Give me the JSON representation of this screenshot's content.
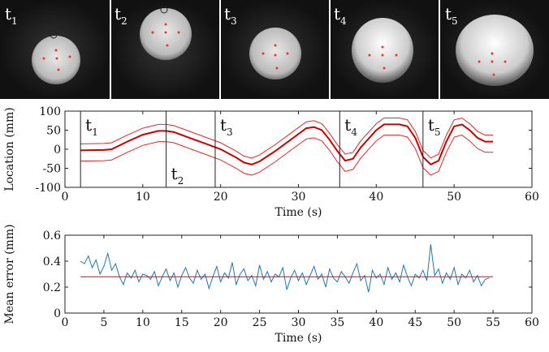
{
  "frames": {
    "labels": [
      {
        "text": "t",
        "sub": "1"
      },
      {
        "text": "t",
        "sub": "2"
      },
      {
        "text": "t",
        "sub": "3"
      },
      {
        "text": "t",
        "sub": "4"
      },
      {
        "text": "t",
        "sub": "5"
      }
    ]
  },
  "chart_data": [
    {
      "type": "line",
      "ylabel": "Location (mm)",
      "xlabel": "Time (s)",
      "xlim": [
        0,
        60
      ],
      "xticks": [
        0,
        10,
        20,
        30,
        40,
        50,
        60
      ],
      "ylim": [
        -100,
        100
      ],
      "yticks": [
        -100,
        -50,
        0,
        50,
        100
      ],
      "x": [
        2,
        5,
        6,
        8,
        10,
        12,
        13,
        14,
        16,
        18,
        20,
        22,
        23,
        24,
        25,
        27,
        29,
        31,
        32,
        33,
        34,
        35,
        36,
        37,
        38,
        40,
        41,
        43,
        44,
        45,
        46,
        47,
        48,
        49,
        50,
        51,
        52,
        53,
        54,
        55
      ],
      "series": [
        {
          "color": "#cc0000",
          "width": 2,
          "values": [
            -3,
            -2,
            0,
            20,
            38,
            48,
            48,
            45,
            30,
            15,
            0,
            -22,
            -35,
            -40,
            -32,
            -5,
            25,
            55,
            58,
            50,
            25,
            -5,
            -30,
            -25,
            5,
            50,
            65,
            65,
            60,
            30,
            -20,
            -40,
            -30,
            20,
            60,
            65,
            50,
            30,
            20,
            20
          ]
        },
        {
          "color": "#ee2222",
          "width": 1,
          "values": [
            14,
            15,
            17,
            37,
            55,
            65,
            65,
            62,
            47,
            32,
            17,
            -5,
            -18,
            -23,
            -15,
            12,
            42,
            72,
            75,
            67,
            42,
            12,
            -13,
            -8,
            22,
            67,
            82,
            82,
            77,
            47,
            -3,
            -23,
            -13,
            37,
            77,
            82,
            67,
            47,
            37,
            37
          ]
        },
        {
          "color": "#ee2222",
          "width": 1,
          "values": [
            -31,
            -30,
            -28,
            -8,
            10,
            20,
            20,
            17,
            2,
            -13,
            -28,
            -50,
            -63,
            -68,
            -60,
            -33,
            -3,
            27,
            30,
            22,
            -3,
            -33,
            -58,
            -53,
            -23,
            22,
            37,
            37,
            32,
            2,
            -48,
            -68,
            -58,
            -8,
            32,
            37,
            22,
            2,
            -8,
            -8
          ]
        }
      ],
      "annotations": [
        {
          "text": "t",
          "sub": "1",
          "x": 2,
          "position": "top"
        },
        {
          "text": "t",
          "sub": "2",
          "x": 13,
          "position": "bottom"
        },
        {
          "text": "t",
          "sub": "3",
          "x": 19.3,
          "position": "top"
        },
        {
          "text": "t",
          "sub": "4",
          "x": 35.3,
          "position": "top"
        },
        {
          "text": "t",
          "sub": "5",
          "x": 46,
          "position": "top"
        }
      ]
    },
    {
      "type": "line",
      "ylabel": "Mean error (mm)",
      "xlabel": "Time (s)",
      "xlim": [
        0,
        60
      ],
      "xticks": [
        0,
        5,
        10,
        15,
        20,
        25,
        30,
        35,
        40,
        45,
        50,
        55,
        60
      ],
      "ylim": [
        0,
        0.6
      ],
      "yticks": [
        0,
        0.2,
        0.4,
        0.6
      ],
      "series": [
        {
          "color": "#1f77b4",
          "width": 1,
          "x": [
            2,
            2.5,
            3,
            3.5,
            4,
            4.5,
            5,
            5.5,
            6,
            6.5,
            7,
            7.5,
            8,
            8.5,
            9,
            9.5,
            10,
            10.5,
            11,
            11.5,
            12,
            12.5,
            13,
            13.5,
            14,
            14.5,
            15,
            15.5,
            16,
            16.5,
            17,
            17.5,
            18,
            18.5,
            19,
            19.5,
            20,
            20.5,
            21,
            21.5,
            22,
            22.5,
            23,
            23.5,
            24,
            24.5,
            25,
            25.5,
            26,
            26.5,
            27,
            27.5,
            28,
            28.5,
            29,
            29.5,
            30,
            30.5,
            31,
            31.5,
            32,
            32.5,
            33,
            33.5,
            34,
            34.5,
            35,
            35.5,
            36,
            36.5,
            37,
            37.5,
            38,
            38.5,
            39,
            39.5,
            40,
            40.5,
            41,
            41.5,
            42,
            42.5,
            43,
            43.5,
            44,
            44.5,
            45,
            45.5,
            46,
            46.5,
            47,
            47.5,
            48,
            48.5,
            49,
            49.5,
            50,
            50.5,
            51,
            51.5,
            52,
            52.5,
            53,
            53.5,
            54,
            54.5
          ],
          "values": [
            0.4,
            0.38,
            0.44,
            0.35,
            0.41,
            0.3,
            0.36,
            0.46,
            0.33,
            0.38,
            0.28,
            0.22,
            0.31,
            0.27,
            0.33,
            0.24,
            0.3,
            0.29,
            0.26,
            0.32,
            0.21,
            0.28,
            0.34,
            0.25,
            0.31,
            0.2,
            0.29,
            0.35,
            0.27,
            0.23,
            0.33,
            0.26,
            0.3,
            0.19,
            0.28,
            0.36,
            0.24,
            0.31,
            0.27,
            0.39,
            0.22,
            0.3,
            0.34,
            0.25,
            0.29,
            0.21,
            0.37,
            0.26,
            0.32,
            0.24,
            0.3,
            0.28,
            0.35,
            0.18,
            0.27,
            0.33,
            0.25,
            0.31,
            0.22,
            0.29,
            0.36,
            0.26,
            0.3,
            0.2,
            0.34,
            0.27,
            0.24,
            0.32,
            0.28,
            0.23,
            0.31,
            0.38,
            0.25,
            0.29,
            0.16,
            0.33,
            0.27,
            0.3,
            0.22,
            0.35,
            0.26,
            0.31,
            0.24,
            0.37,
            0.28,
            0.21,
            0.3,
            0.27,
            0.33,
            0.25,
            0.53,
            0.29,
            0.34,
            0.23,
            0.31,
            0.26,
            0.35,
            0.22,
            0.3,
            0.27,
            0.33,
            0.24,
            0.29,
            0.21,
            0.26,
            0.27
          ]
        },
        {
          "color": "#ee0000",
          "width": 1,
          "x": [
            2,
            55
          ],
          "values": [
            0.28,
            0.28
          ]
        }
      ]
    }
  ]
}
